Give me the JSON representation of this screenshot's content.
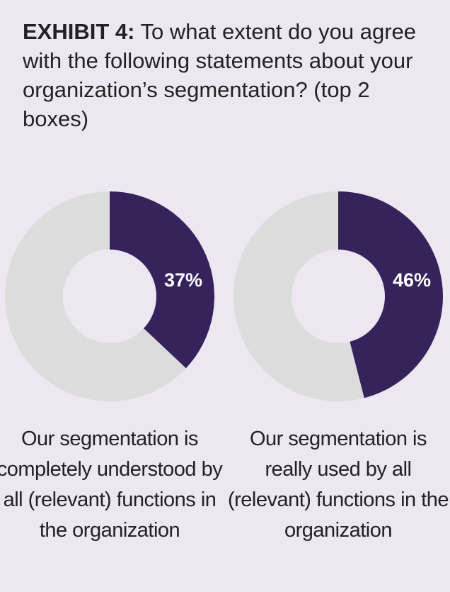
{
  "header": {
    "exhibit": "EXHIBIT 4:",
    "question": "To what extent do you agree with the following statements about your organization’s segmentation? (top 2 boxes)"
  },
  "colors": {
    "value": "#37235c",
    "remainder": "#dcdcdc",
    "background": "#ece7f0"
  },
  "chart_data": [
    {
      "type": "pie",
      "donut": true,
      "values": [
        37,
        63
      ],
      "value_label": "37%",
      "caption": "Our segmentation is completely understood by all (relevant) functions in the organization"
    },
    {
      "type": "pie",
      "donut": true,
      "values": [
        46,
        54
      ],
      "value_label": "46%",
      "caption": "Our segmentation is really used by all (relevant) functions in the organization"
    }
  ]
}
